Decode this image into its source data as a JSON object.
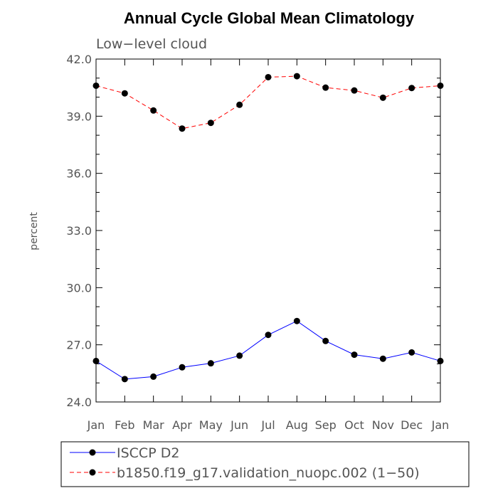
{
  "chart_data": {
    "type": "line",
    "title": "Annual Cycle Global Mean Climatology",
    "subtitle": "Low−level cloud",
    "xlabel": "",
    "ylabel": "percent",
    "categories": [
      "Jan",
      "Feb",
      "Mar",
      "Apr",
      "May",
      "Jun",
      "Jul",
      "Aug",
      "Sep",
      "Oct",
      "Nov",
      "Dec",
      "Jan"
    ],
    "ylim": [
      24.0,
      42.0
    ],
    "yticks": [
      "24.0",
      "27.0",
      "30.0",
      "33.0",
      "36.0",
      "39.0",
      "42.0"
    ],
    "yticks_values": [
      24,
      27,
      30,
      33,
      36,
      39,
      42
    ],
    "grid": false,
    "legend_position": "bottom",
    "series": [
      {
        "name": "ISCCP D2",
        "color": "#0000ff",
        "dash": "solid",
        "marker": "filled-circle",
        "values": [
          26.15,
          25.2,
          25.33,
          25.82,
          26.03,
          26.43,
          27.52,
          28.25,
          27.2,
          26.48,
          26.27,
          26.6,
          26.15
        ]
      },
      {
        "name": "b1850.f19_g17.validation_nuopc.002 (1−50)",
        "color": "#ff0000",
        "dash": "dashed",
        "marker": "filled-circle",
        "values": [
          40.6,
          40.2,
          39.3,
          38.35,
          38.65,
          39.6,
          41.05,
          41.1,
          40.5,
          40.35,
          39.97,
          40.48,
          40.6
        ]
      }
    ]
  }
}
